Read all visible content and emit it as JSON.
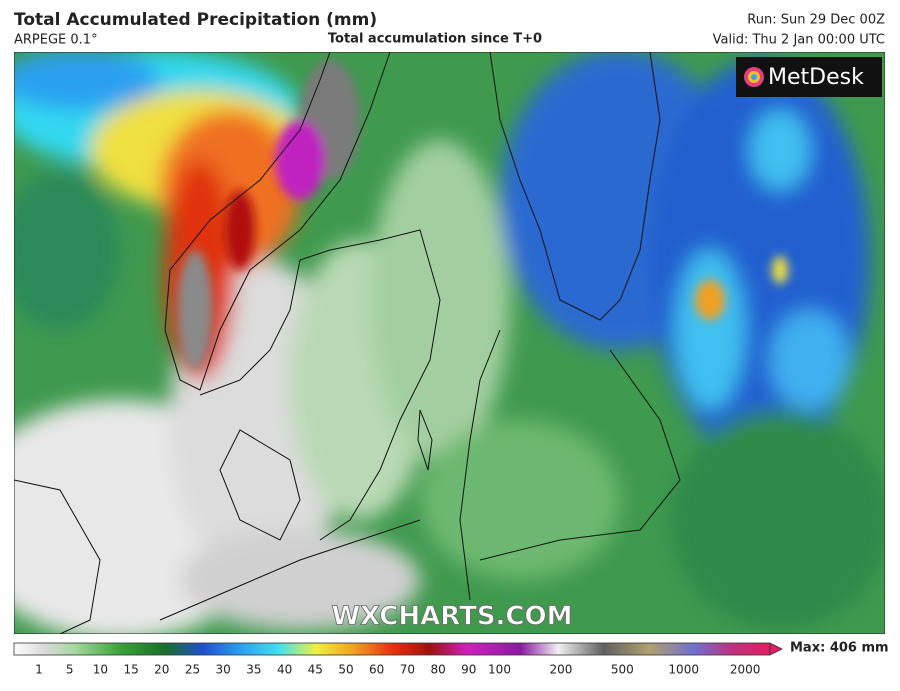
{
  "header": {
    "title": "Total Accumulated Precipitation (mm)",
    "model": "ARPEGE 0.1°",
    "subtitle": "Total accumulation since T+0",
    "run": "Run: Sun 29 Dec 00Z",
    "valid": "Valid: Thu 2 Jan 00:00 UTC"
  },
  "logo": "MetDesk",
  "watermark": "WXCHARTS.COM",
  "colorbar": {
    "ticks": [
      1,
      5,
      10,
      15,
      20,
      25,
      30,
      35,
      40,
      45,
      50,
      60,
      70,
      80,
      90,
      100,
      200,
      500,
      1000,
      2000
    ],
    "max_label": "Max: 406 mm"
  }
}
